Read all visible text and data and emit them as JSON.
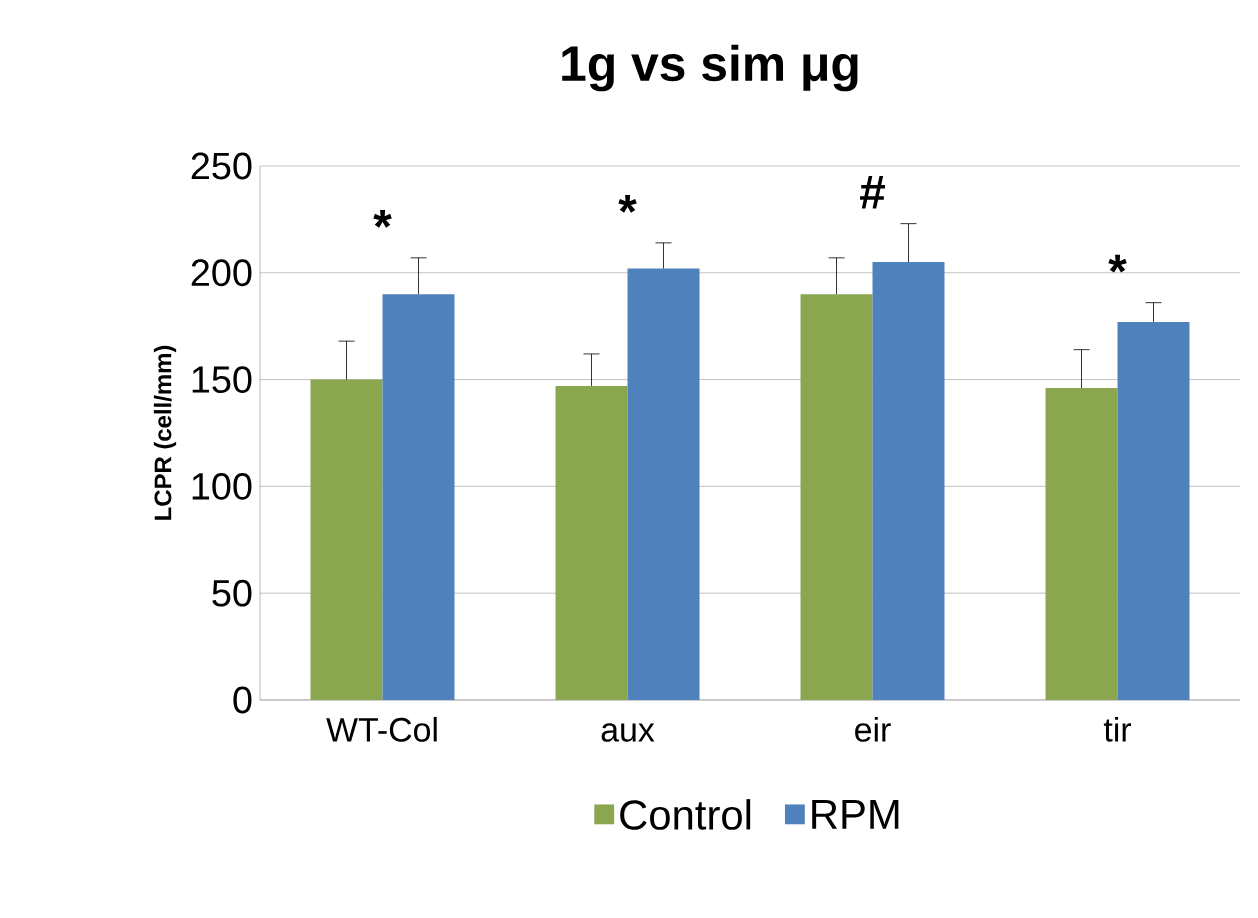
{
  "chart_data": {
    "type": "bar",
    "title": "1g vs sim μg",
    "ylabel": "LCPR (cell/mm)",
    "categories": [
      "WT-Col",
      "aux",
      "eir",
      "tir"
    ],
    "series": [
      {
        "name": "Control",
        "color": "#8aa64f",
        "values": [
          150,
          147,
          190,
          146
        ],
        "errors": [
          18,
          15,
          17,
          18
        ]
      },
      {
        "name": "RPM",
        "color": "#4f81bd",
        "values": [
          190,
          202,
          205,
          177
        ],
        "errors": [
          17,
          12,
          18,
          9
        ]
      }
    ],
    "ylim": [
      0,
      250
    ],
    "yticks": [
      0,
      50,
      100,
      150,
      200,
      250
    ],
    "grid": "y",
    "legend": "bottom",
    "annotations": [
      "*",
      "*",
      "#",
      "*"
    ]
  }
}
